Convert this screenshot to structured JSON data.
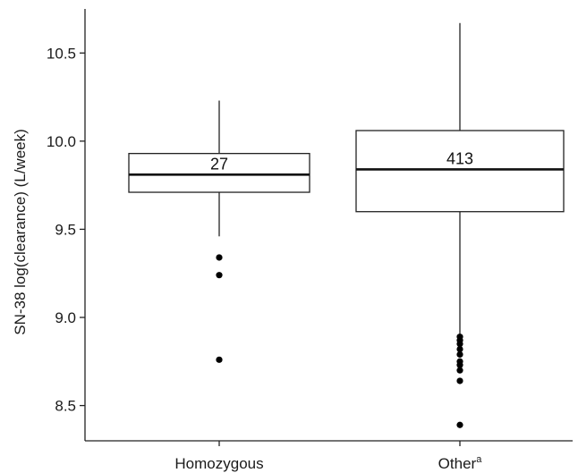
{
  "chart_data": {
    "type": "boxplot",
    "title": "",
    "xlabel": "",
    "ylabel": "SN-38 log(clearance) (L/week)",
    "ylim": [
      8.3,
      10.75
    ],
    "yticks": [
      8.5,
      9.0,
      9.5,
      10.0,
      10.5
    ],
    "ytick_labels": [
      "8.5",
      "9.0",
      "9.5",
      "10.0",
      "10.5"
    ],
    "grid": false,
    "legend": "none",
    "categories": [
      {
        "label": "Homozygous",
        "label_sup": ""
      },
      {
        "label": "Other",
        "label_sup": "a"
      }
    ],
    "boxes": [
      {
        "category": "Homozygous",
        "n_label": "27",
        "q1": 9.71,
        "median": 9.81,
        "q3": 9.93,
        "whisker_low": 9.46,
        "whisker_high": 10.23,
        "outliers": [
          9.34,
          9.24,
          8.76
        ]
      },
      {
        "category": "Other",
        "n_label": "413",
        "q1": 9.6,
        "median": 9.84,
        "q3": 10.06,
        "whisker_low": 8.9,
        "whisker_high": 10.67,
        "outliers": [
          8.89,
          8.87,
          8.85,
          8.82,
          8.79,
          8.75,
          8.73,
          8.7,
          8.64,
          8.39
        ]
      }
    ]
  }
}
